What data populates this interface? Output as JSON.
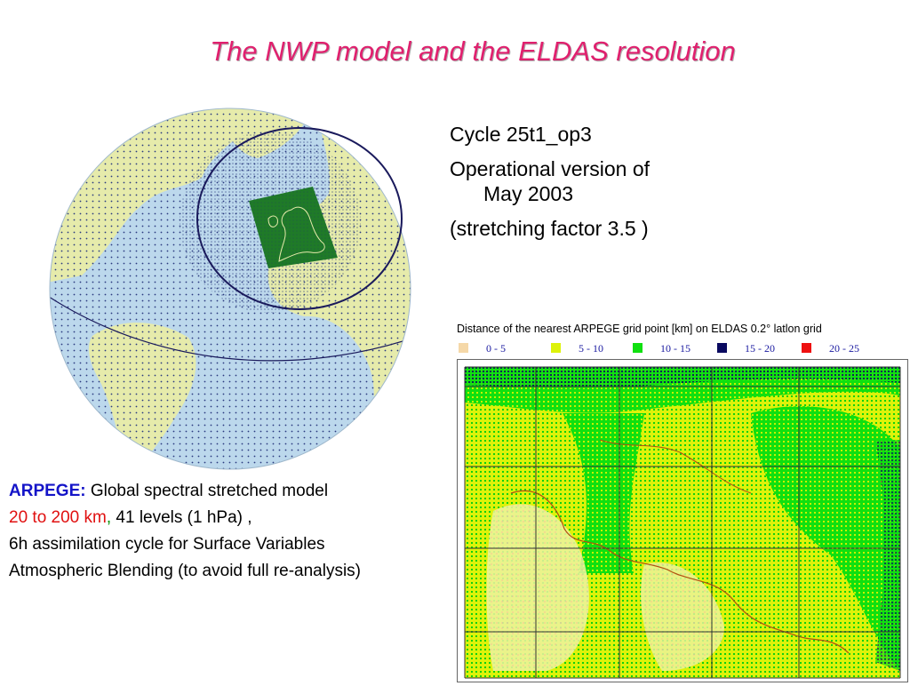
{
  "title": "The NWP model and the ELDAS resolution",
  "right_bullets": {
    "b1": "Cycle 25t1_op3",
    "b2_line1": "Operational version of",
    "b2_line2": "May 2003",
    "b3": "(stretching factor 3.5 )"
  },
  "left_text": {
    "arpege_label": "ARPEGE:",
    "line1_rest": " Global spectral stretched model",
    "line2_red": "20 to 200 km",
    "line2_green": ",",
    "line2_rest": " 41 levels (1 hPa) ,",
    "line3": "6h assimilation cycle for Surface Variables",
    "line4": "Atmospheric Blending (to avoid full re-analysis)"
  },
  "map": {
    "title": "Distance of the nearest ARPEGE grid point [km] on ELDAS 0.2° latlon grid",
    "legend": [
      {
        "label": "0 - 5",
        "color": "#f5d8a8"
      },
      {
        "label": "5 - 10",
        "color": "#ddf20a"
      },
      {
        "label": "10 - 15",
        "color": "#10e010"
      },
      {
        "label": "15 - 20",
        "color": "#0a0a60"
      },
      {
        "label": "20 - 25",
        "color": "#ee1010"
      }
    ]
  },
  "colors": {
    "title": "#e0206e",
    "ocean": "#bcd8ec",
    "land": "#e6ebab",
    "domain": "#1f7a28",
    "orbit": "#1a1a5c"
  }
}
